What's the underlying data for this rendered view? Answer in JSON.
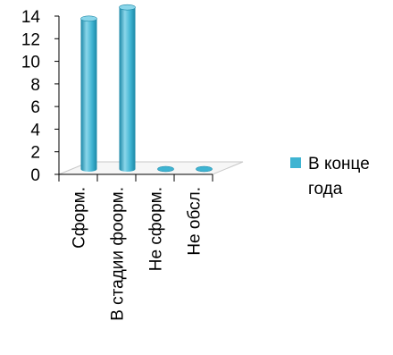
{
  "chart_data": {
    "type": "bar",
    "categories": [
      "Сформ.",
      "В стадии фоорм.",
      "Не сформ.",
      "Не обсл."
    ],
    "series": [
      {
        "name": "В конце года",
        "values": [
          13.3,
          14.3,
          0,
          0
        ]
      }
    ],
    "ylim": [
      0,
      14
    ],
    "yticks": [
      "0",
      "2",
      "4",
      "6",
      "8",
      "10",
      "12",
      "14"
    ],
    "legend_lines": [
      "В конце",
      "года"
    ],
    "legend_position": "right",
    "grid": false,
    "colors": {
      "bar_light": "#8ad6ea",
      "bar_main": "#3fb4d2",
      "bar_dark": "#1b87a6",
      "floor": "#f6f6f6",
      "floor_edge": "#c8c8c8"
    }
  }
}
